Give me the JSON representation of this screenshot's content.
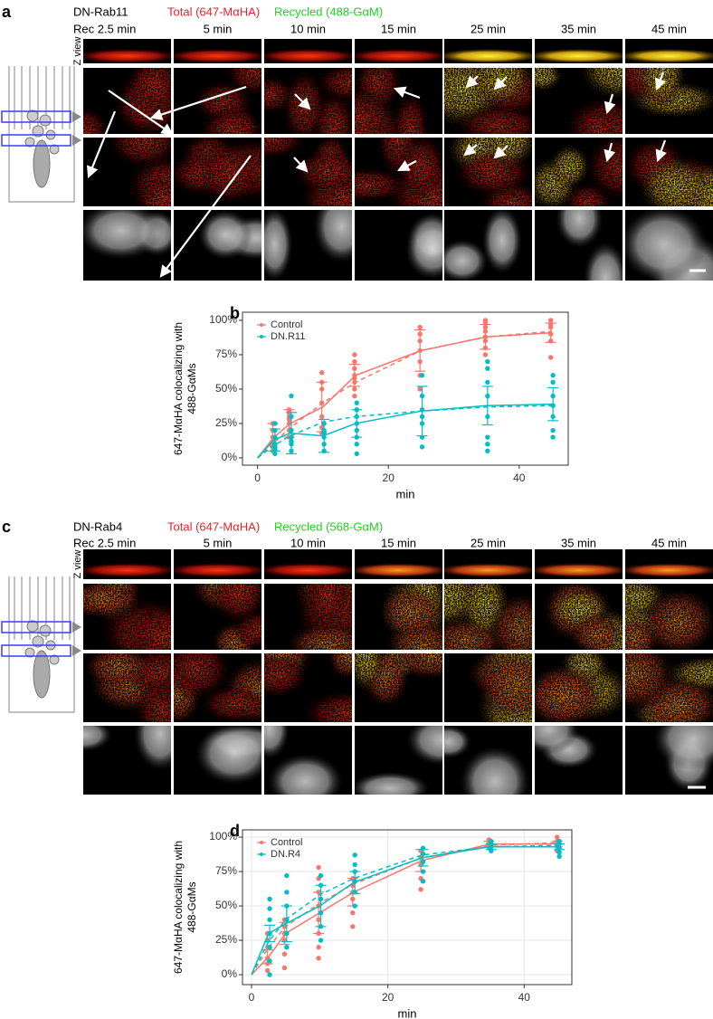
{
  "panels": [
    {
      "label": "a",
      "construct": "DN-Rab11",
      "total": "Total (647-MαHA)",
      "recycled": "Recycled (488-GαM)",
      "z_view": "Z view",
      "times": [
        "Rec 2.5 min",
        "5 min",
        "10 min",
        "15 min",
        "25 min",
        "35 min",
        "45 min"
      ]
    },
    {
      "label": "c",
      "construct": "DN-Rab4",
      "total": "Total (647-MαHA)",
      "recycled": "Recycled (568-GαM)",
      "z_view": "Z view",
      "times": [
        "Rec 2.5 min",
        "5 min",
        "10 min",
        "15 min",
        "25 min",
        "35 min",
        "45 min"
      ]
    }
  ],
  "chart_data": [
    {
      "type": "scatter",
      "panel_label": "b",
      "xlabel": "min",
      "ylabel": [
        "647-MαHA colocalizing with",
        "488-GαMs"
      ],
      "x": [
        0,
        2.5,
        5,
        10,
        15,
        25,
        35,
        45
      ],
      "xlim": [
        -2.3,
        47.5
      ],
      "xticks": [
        0,
        20,
        40
      ],
      "ylim": [
        -5.3,
        105.9
      ],
      "yticks": [
        {
          "value": 0,
          "label": "0%"
        },
        {
          "value": 25,
          "label": "25%"
        },
        {
          "value": 50,
          "label": "50%"
        },
        {
          "value": 75,
          "label": "75%"
        },
        {
          "value": 100,
          "label": "100%"
        }
      ],
      "grid": false,
      "legend": "top-left",
      "series": [
        {
          "name": "Control",
          "color": "#f8766d",
          "values": [
            0,
            15,
            25,
            37,
            60,
            78,
            88,
            91
          ],
          "errors": [
            null,
            10,
            10,
            18,
            8,
            15,
            9,
            7
          ],
          "fit": [
            0,
            11,
            22,
            40,
            55,
            78,
            88,
            92
          ],
          "points": [
            [],
            [
              5,
              10,
              15,
              20,
              25,
              12,
              8
            ],
            [
              15,
              20,
              25,
              30,
              35,
              33,
              28
            ],
            [
              22,
              30,
              40,
              50,
              55,
              62,
              18
            ],
            [
              45,
              50,
              55,
              60,
              65,
              70,
              75,
              58
            ],
            [
              60,
              70,
              78,
              85,
              90,
              95,
              50
            ],
            [
              80,
              85,
              88,
              92,
              95,
              98,
              100,
              75
            ],
            [
              85,
              90,
              95,
              97,
              100,
              73
            ]
          ]
        },
        {
          "name": "DN.R11",
          "color": "#00bfc4",
          "values": [
            0,
            13,
            18,
            16,
            25,
            34,
            38,
            39
          ],
          "errors": [
            null,
            8,
            15,
            12,
            10,
            18,
            14,
            12
          ],
          "fit": [
            0,
            9,
            16,
            26,
            30,
            34,
            37,
            38
          ],
          "points": [
            [],
            [
              3,
              6,
              10,
              15,
              20,
              25,
              8
            ],
            [
              5,
              10,
              15,
              20,
              30,
              45,
              12
            ],
            [
              10,
              15,
              20,
              25,
              18,
              5
            ],
            [
              10,
              15,
              20,
              25,
              30,
              35,
              40,
              3
            ],
            [
              8,
              15,
              25,
              35,
              45,
              60,
              30
            ],
            [
              5,
              10,
              15,
              30,
              45,
              55,
              65,
              70
            ],
            [
              15,
              20,
              30,
              38,
              45,
              55,
              60
            ]
          ]
        }
      ]
    },
    {
      "type": "scatter",
      "panel_label": "d",
      "xlabel": "min",
      "ylabel": [
        "647-MαHA colocalizing with",
        "488-GαMs"
      ],
      "x": [
        0,
        2.5,
        5,
        10,
        15,
        25,
        35,
        45
      ],
      "xlim": [
        -1.33,
        47.0
      ],
      "xticks": [
        0,
        20,
        40
      ],
      "ylim": [
        -7.2,
        105.3
      ],
      "yticks": [
        {
          "value": 0,
          "label": "0%"
        },
        {
          "value": 25,
          "label": "25%"
        },
        {
          "value": 50,
          "label": "50%"
        },
        {
          "value": 75,
          "label": "75%"
        },
        {
          "value": 100,
          "label": "100%"
        }
      ],
      "grid": true,
      "legend": "top-left",
      "series": [
        {
          "name": "Control",
          "color": "#f8766d",
          "values": [
            0,
            13,
            30,
            45,
            60,
            83,
            95,
            95
          ],
          "errors": [
            null,
            5,
            8,
            15,
            10,
            8,
            2,
            2
          ],
          "fit": [
            0,
            20,
            35,
            52,
            66,
            85,
            94,
            96
          ],
          "points": [
            [],
            [
              3,
              8,
              12,
              20,
              25,
              30
            ],
            [
              5,
              15,
              25,
              30,
              35,
              40
            ],
            [
              12,
              20,
              30,
              40,
              50,
              60,
              70,
              78
            ],
            [
              35,
              45,
              55,
              60,
              65,
              70
            ],
            [
              62,
              70,
              80,
              85,
              90
            ],
            [
              92,
              94,
              96,
              98
            ],
            [
              90,
              93,
              95,
              97,
              100
            ]
          ]
        },
        {
          "name": "DN.R4",
          "color": "#00bfc4",
          "values": [
            0,
            30,
            37,
            50,
            67,
            85,
            93,
            93
          ],
          "errors": [
            null,
            6,
            13,
            15,
            8,
            6,
            2,
            2
          ],
          "fit": [
            0,
            24,
            40,
            58,
            70,
            87,
            93,
            94
          ],
          "points": [
            [],
            [
              0,
              10,
              20,
              30,
              40,
              48,
              55
            ],
            [
              20,
              30,
              40,
              50,
              60,
              72
            ],
            [
              25,
              35,
              45,
              55,
              65,
              72
            ],
            [
              50,
              60,
              68,
              75,
              80,
              87
            ],
            [
              68,
              75,
              82,
              88,
              92
            ],
            [
              90,
              93,
              95,
              97
            ],
            [
              86,
              89,
              92,
              95,
              97
            ]
          ]
        }
      ]
    }
  ]
}
